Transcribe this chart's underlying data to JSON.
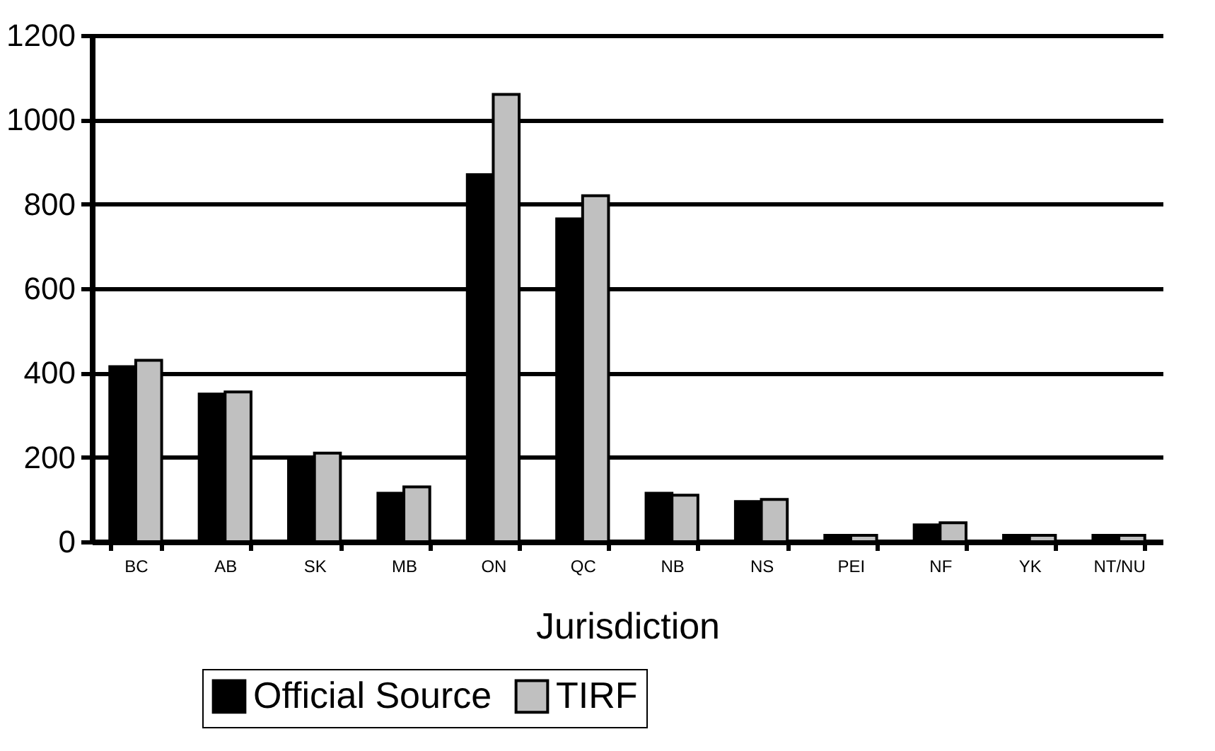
{
  "chart_data": {
    "type": "bar",
    "xlabel": "Jurisdiction",
    "categories": [
      "BC",
      "AB",
      "SK",
      "MB",
      "ON",
      "QC",
      "NB",
      "NS",
      "PEI",
      "NF",
      "YK",
      "NT/NU"
    ],
    "series": [
      {
        "name": "Official Source",
        "color": "#000000",
        "values": [
          415,
          350,
          200,
          115,
          870,
          765,
          115,
          95,
          15,
          40,
          15,
          15
        ]
      },
      {
        "name": "TIRF",
        "color": "#c0c0c0",
        "values": [
          430,
          355,
          210,
          130,
          1060,
          820,
          110,
          100,
          15,
          45,
          15,
          15
        ]
      }
    ],
    "ylim": [
      0,
      1200
    ],
    "yticks": [
      0,
      200,
      400,
      600,
      800,
      1000,
      1200
    ],
    "grid": "y",
    "legend": "bottom"
  }
}
